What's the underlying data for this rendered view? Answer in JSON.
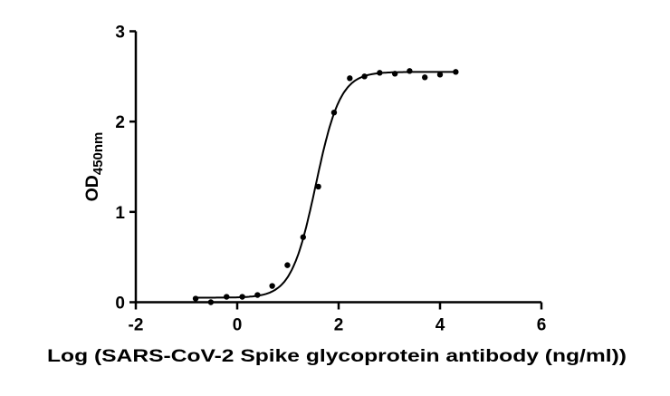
{
  "chart_data": {
    "type": "scatter",
    "title": "",
    "xlabel": "Log (SARS-CoV-2 Spike glycoprotein antibody (ng/ml))",
    "ylabel_main": "OD",
    "ylabel_sub": "450nm",
    "xlim": [
      -2,
      6
    ],
    "ylim": [
      0,
      3
    ],
    "xticks": [
      "-2",
      "0",
      "2",
      "4",
      "6"
    ],
    "yticks": [
      "0",
      "1",
      "2",
      "3"
    ],
    "grid": false,
    "points": [
      {
        "x": -0.82,
        "y": 0.04
      },
      {
        "x": -0.52,
        "y": 0.0
      },
      {
        "x": -0.21,
        "y": 0.06
      },
      {
        "x": 0.1,
        "y": 0.06
      },
      {
        "x": 0.4,
        "y": 0.08
      },
      {
        "x": 0.69,
        "y": 0.18
      },
      {
        "x": 0.99,
        "y": 0.41
      },
      {
        "x": 1.3,
        "y": 0.72
      },
      {
        "x": 1.6,
        "y": 1.28
      },
      {
        "x": 1.91,
        "y": 2.1
      },
      {
        "x": 2.22,
        "y": 2.48
      },
      {
        "x": 2.51,
        "y": 2.5
      },
      {
        "x": 2.81,
        "y": 2.54
      },
      {
        "x": 3.11,
        "y": 2.53
      },
      {
        "x": 3.4,
        "y": 2.56
      },
      {
        "x": 3.7,
        "y": 2.49
      },
      {
        "x": 4.0,
        "y": 2.52
      },
      {
        "x": 4.31,
        "y": 2.55
      }
    ],
    "fit": {
      "model": "4PL",
      "bottom": 0.05,
      "top": 2.55,
      "logEC50": 1.55,
      "hill": 1.8,
      "x_range": [
        -0.82,
        4.31
      ]
    },
    "colors": {
      "points": "#000000",
      "curve": "#000000"
    }
  }
}
